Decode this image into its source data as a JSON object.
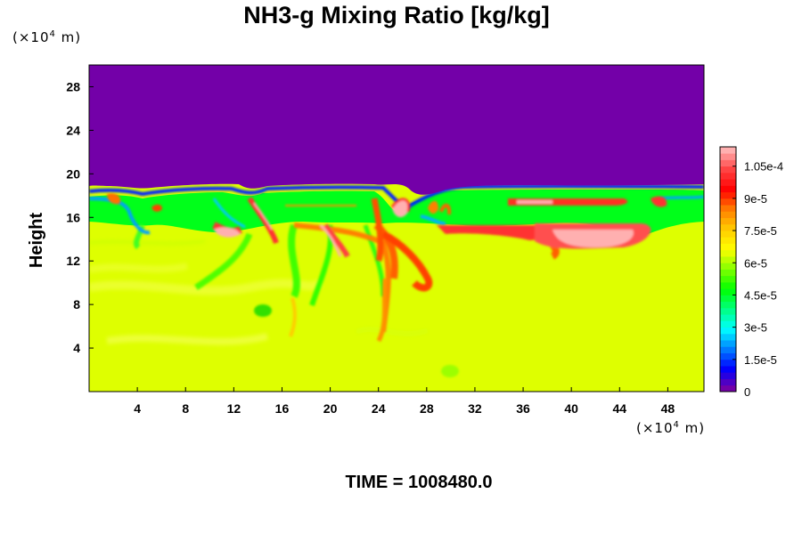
{
  "chart_data": {
    "type": "heatmap",
    "title": "NH3-g Mixing Ratio [kg/kg]",
    "ylabel": "Height",
    "x_unit": "(×10⁴ m)",
    "y_unit": "(×10⁴ m)",
    "x_ticks": [
      "4",
      "8",
      "12",
      "16",
      "20",
      "24",
      "28",
      "32",
      "36",
      "40",
      "44",
      "48"
    ],
    "y_ticks": [
      "4",
      "8",
      "12",
      "16",
      "20",
      "24",
      "28"
    ],
    "xlim": [
      0,
      51
    ],
    "ylim": [
      0,
      30
    ],
    "colorbar": {
      "ticks": [
        "0",
        "1.5e-5",
        "3e-5",
        "4.5e-5",
        "6e-5",
        "7.5e-5",
        "9e-5",
        "1.05e-4"
      ],
      "tick_values": [
        0,
        1.5e-05,
        3e-05,
        4.5e-05,
        6e-05,
        7.5e-05,
        9e-05,
        0.000105
      ],
      "range": [
        0,
        0.000114
      ],
      "levels": 38,
      "colors": [
        "#7300a8",
        "#0000ff",
        "#0080ff",
        "#00ffff",
        "#00ff80",
        "#00ff00",
        "#80ff00",
        "#ffff00",
        "#ffcc00",
        "#ff8000",
        "#ff0000",
        "#ff4040",
        "#ffb0b0"
      ]
    },
    "regions": {
      "upper_layer": {
        "value": 0,
        "y_range": [
          18.5,
          30
        ]
      },
      "interface_layer": {
        "value": 5.5e-05,
        "y_range": [
          15.5,
          18.5
        ]
      },
      "lower_layer": {
        "value": 7.7e-05,
        "y_range": [
          0,
          15.5
        ]
      },
      "peak_value": 0.000112
    }
  },
  "footer": {
    "time_label": "TIME = 1008480.0"
  }
}
